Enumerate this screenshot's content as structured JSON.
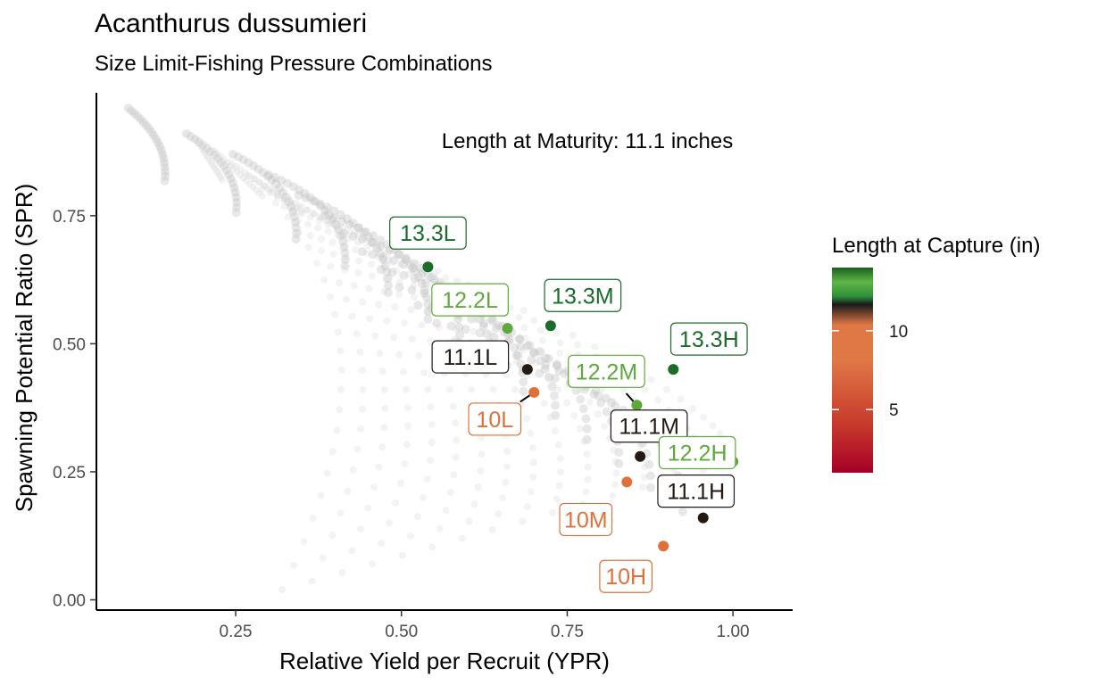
{
  "chart_data": {
    "type": "scatter",
    "title": "Acanthurus dussumieri",
    "subtitle": "Size Limit-Fishing Pressure Combinations",
    "xlabel": "Relative Yield per Recruit (YPR)",
    "ylabel": "Spawning Potential Ratio (SPR)",
    "xlim": [
      0.04,
      1.09
    ],
    "ylim": [
      -0.02,
      0.99
    ],
    "x_ticks": [
      "0.25",
      "0.50",
      "0.75",
      "1.00"
    ],
    "x_tick_values": [
      0.25,
      0.5,
      0.75,
      1.0
    ],
    "y_ticks": [
      "0.00",
      "0.25",
      "0.50",
      "0.75"
    ],
    "y_tick_values": [
      0.0,
      0.25,
      0.5,
      0.75
    ],
    "annotation": "Length at Maturity: 11.1 inches",
    "grid": false,
    "legend": {
      "title": "Length at Capture (in)",
      "type": "colorbar",
      "placement": "right",
      "ticks": [
        "10",
        "5"
      ],
      "tick_values": [
        10,
        5
      ],
      "range": [
        1,
        14
      ],
      "colors": [
        "#a50026",
        "#c83a2c",
        "#e07845",
        "#e07845",
        "#1a1a1a",
        "#2f8f3a",
        "#5fb546",
        "#1b5e20"
      ]
    },
    "highlighted_points": [
      {
        "label": "13.3L",
        "x": 0.54,
        "y": 0.65,
        "color": "#1b6b2b"
      },
      {
        "label": "12.2L",
        "x": 0.66,
        "y": 0.53,
        "color": "#5fa83d"
      },
      {
        "label": "13.3M",
        "x": 0.725,
        "y": 0.535,
        "color": "#1b6b2b"
      },
      {
        "label": "11.1L",
        "x": 0.69,
        "y": 0.45,
        "color": "#231a14"
      },
      {
        "label": "13.3H",
        "x": 0.91,
        "y": 0.45,
        "color": "#1b6b2b"
      },
      {
        "label": "12.2M",
        "x": 0.855,
        "y": 0.38,
        "color": "#5fa83d"
      },
      {
        "label": "10L",
        "x": 0.7,
        "y": 0.405,
        "color": "#e0703a"
      },
      {
        "label": "11.1M",
        "x": 0.86,
        "y": 0.28,
        "color": "#231a14"
      },
      {
        "label": "12.2H",
        "x": 1.0,
        "y": 0.27,
        "color": "#5fa83d"
      },
      {
        "label": "10M",
        "x": 0.84,
        "y": 0.23,
        "color": "#e0703a"
      },
      {
        "label": "11.1H",
        "x": 0.955,
        "y": 0.16,
        "color": "#231a14"
      },
      {
        "label": "10H",
        "x": 0.895,
        "y": 0.105,
        "color": "#e0703a"
      }
    ],
    "background_cloud": "grey semi-transparent points of all size limit - fishing pressure combinations"
  }
}
